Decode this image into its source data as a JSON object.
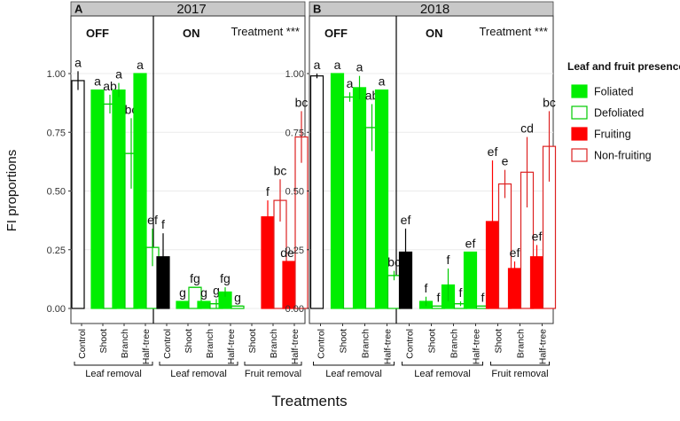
{
  "chart_data": {
    "type": "bar",
    "title": "",
    "xlabel": "Treatments",
    "ylabel": "FI proportions",
    "ylim": [
      0,
      1.0
    ],
    "yticks": [
      "0.00",
      "0.25",
      "0.50",
      "0.75",
      "1.00"
    ],
    "grid": true,
    "legend": {
      "title": "Leaf and fruit presence",
      "placement": "right",
      "entries": [
        {
          "label": "Foliated",
          "key": "foliated"
        },
        {
          "label": "Defoliated",
          "key": "defoliated"
        },
        {
          "label": "Fruiting",
          "key": "fruiting"
        },
        {
          "label": "Non-fruiting",
          "key": "nonfruiting"
        }
      ]
    },
    "styles": {
      "control": {
        "fill": "#ffffff",
        "stroke": "#000000"
      },
      "control_on": {
        "fill": "#000000",
        "stroke": "#000000"
      },
      "foliated": {
        "fill": "#00ee00",
        "stroke": "#00ee00"
      },
      "defoliated": {
        "fill": "#ffffff",
        "stroke": "#00cc00"
      },
      "fruiting": {
        "fill": "#ff0000",
        "stroke": "#ff0000"
      },
      "nonfruiting": {
        "fill": "#ffffff",
        "stroke": "#dd2222"
      }
    },
    "panels": [
      {
        "letter": "A",
        "year": "2017",
        "off_label": "OFF",
        "on_label": "ON",
        "significance": "Treatment ***",
        "groups": [
          {
            "label": "Leaf removal",
            "from": 0,
            "to": 3
          },
          {
            "label": "Leaf removal",
            "from": 4,
            "to": 7
          },
          {
            "label": "Fruit removal",
            "from": 8,
            "to": 10
          }
        ],
        "slots": [
          {
            "category": "Control",
            "bars": [
              {
                "key": "control",
                "value": 0.97,
                "err": 0.04,
                "letter": "a"
              }
            ]
          },
          {
            "category": "Shoot",
            "bars": [
              {
                "key": "foliated",
                "value": 0.93,
                "err": 0.0,
                "letter": "a"
              },
              {
                "key": "defoliated",
                "value": 0.87,
                "err": 0.04,
                "letter": "ab"
              }
            ]
          },
          {
            "category": "Branch",
            "bars": [
              {
                "key": "foliated",
                "value": 0.93,
                "err": 0.03,
                "letter": "a"
              },
              {
                "key": "defoliated",
                "value": 0.66,
                "err": 0.15,
                "letter": "bc"
              }
            ]
          },
          {
            "category": "Half-tree",
            "bars": [
              {
                "key": "foliated",
                "value": 1.0,
                "err": 0.0,
                "letter": "a"
              },
              {
                "key": "defoliated",
                "value": 0.26,
                "err": 0.08,
                "letter": "ef"
              }
            ]
          },
          {
            "category": "Control",
            "bars": [
              {
                "key": "control_on",
                "value": 0.22,
                "err": 0.1,
                "letter": "f"
              }
            ]
          },
          {
            "category": "Shoot",
            "bars": [
              {
                "key": "foliated",
                "value": 0.03,
                "err": 0.0,
                "letter": "g"
              },
              {
                "key": "defoliated",
                "value": 0.09,
                "err": 0.0,
                "letter": "fg"
              }
            ]
          },
          {
            "category": "Branch",
            "bars": [
              {
                "key": "foliated",
                "value": 0.03,
                "err": 0.0,
                "letter": "g"
              },
              {
                "key": "defoliated",
                "value": 0.02,
                "err": 0.02,
                "letter": "g"
              }
            ]
          },
          {
            "category": "Half-tree",
            "bars": [
              {
                "key": "foliated",
                "value": 0.07,
                "err": 0.02,
                "letter": "fg"
              },
              {
                "key": "defoliated",
                "value": 0.01,
                "err": 0.0,
                "letter": "g"
              }
            ]
          },
          {
            "category": "Shoot",
            "bars": []
          },
          {
            "category": "Branch",
            "bars": [
              {
                "key": "fruiting",
                "value": 0.39,
                "err": 0.07,
                "letter": "f"
              },
              {
                "key": "nonfruiting",
                "value": 0.46,
                "err": 0.09,
                "letter": "bc"
              }
            ]
          },
          {
            "category": "Half-tree",
            "bars": [
              {
                "key": "fruiting",
                "value": 0.2,
                "err": 0.0,
                "letter": "def"
              },
              {
                "key": "nonfruiting",
                "value": 0.73,
                "err": 0.11,
                "letter": "bc"
              }
            ]
          }
        ]
      },
      {
        "letter": "B",
        "year": "2018",
        "off_label": "OFF",
        "on_label": "ON",
        "significance": "Treatment ***",
        "groups": [
          {
            "label": "Leaf removal",
            "from": 0,
            "to": 3
          },
          {
            "label": "Leaf removal",
            "from": 4,
            "to": 7
          },
          {
            "label": "Fruit removal",
            "from": 8,
            "to": 10
          }
        ],
        "slots": [
          {
            "category": "Control",
            "bars": [
              {
                "key": "control",
                "value": 0.99,
                "err": 0.01,
                "letter": "a"
              }
            ]
          },
          {
            "category": "Shoot",
            "bars": [
              {
                "key": "foliated",
                "value": 1.0,
                "err": 0.0,
                "letter": "a"
              },
              {
                "key": "defoliated",
                "value": 0.9,
                "err": 0.02,
                "letter": "a"
              }
            ]
          },
          {
            "category": "Branch",
            "bars": [
              {
                "key": "foliated",
                "value": 0.94,
                "err": 0.05,
                "letter": "a"
              },
              {
                "key": "defoliated",
                "value": 0.77,
                "err": 0.1,
                "letter": "ab"
              }
            ]
          },
          {
            "category": "Half-tree",
            "bars": [
              {
                "key": "foliated",
                "value": 0.93,
                "err": 0.0,
                "letter": "a"
              },
              {
                "key": "defoliated",
                "value": 0.14,
                "err": 0.02,
                "letter": "bc"
              }
            ]
          },
          {
            "category": "Control",
            "bars": [
              {
                "key": "control_on",
                "value": 0.24,
                "err": 0.1,
                "letter": "ef"
              }
            ]
          },
          {
            "category": "Shoot",
            "bars": [
              {
                "key": "foliated",
                "value": 0.03,
                "err": 0.02,
                "letter": "f"
              },
              {
                "key": "defoliated",
                "value": 0.01,
                "err": 0.0,
                "letter": "f"
              }
            ]
          },
          {
            "category": "Branch",
            "bars": [
              {
                "key": "foliated",
                "value": 0.1,
                "err": 0.07,
                "letter": "f"
              },
              {
                "key": "defoliated",
                "value": 0.02,
                "err": 0.01,
                "letter": "f"
              }
            ]
          },
          {
            "category": "Half-tree",
            "bars": [
              {
                "key": "foliated",
                "value": 0.24,
                "err": 0.0,
                "letter": "ef"
              },
              {
                "key": "defoliated",
                "value": 0.01,
                "err": 0.0,
                "letter": "f"
              }
            ]
          },
          {
            "category": "Shoot",
            "bars": [
              {
                "key": "fruiting",
                "value": 0.37,
                "err": 0.26,
                "letter": "ef"
              },
              {
                "key": "nonfruiting",
                "value": 0.53,
                "err": 0.06,
                "letter": "e"
              }
            ]
          },
          {
            "category": "Branch",
            "bars": [
              {
                "key": "fruiting",
                "value": 0.17,
                "err": 0.03,
                "letter": "ef"
              },
              {
                "key": "nonfruiting",
                "value": 0.58,
                "err": 0.15,
                "letter": "cd"
              }
            ]
          },
          {
            "category": "Half-tree",
            "bars": [
              {
                "key": "fruiting",
                "value": 0.22,
                "err": 0.05,
                "letter": "ef"
              },
              {
                "key": "nonfruiting",
                "value": 0.69,
                "err": 0.15,
                "letter": "bc"
              }
            ]
          }
        ]
      }
    ]
  }
}
